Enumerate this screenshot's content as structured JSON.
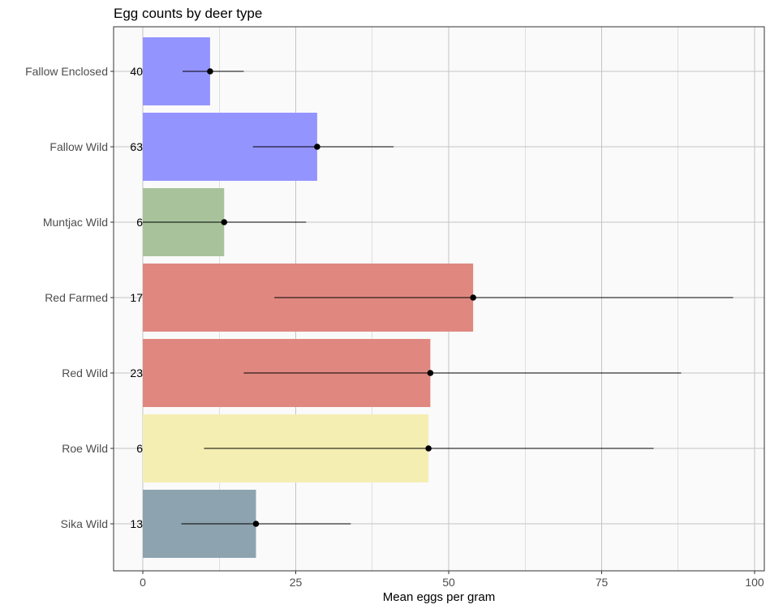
{
  "chart_data": {
    "type": "bar",
    "orientation": "horizontal",
    "title": "Egg counts by deer type",
    "xlabel": "Mean eggs per gram",
    "ylabel": "",
    "xlim": [
      0,
      100
    ],
    "xticks": [
      0,
      25,
      50,
      75,
      100
    ],
    "grid": true,
    "categories": [
      "Fallow Enclosed",
      "Fallow Wild",
      "Muntjac Wild",
      "Red Farmed",
      "Red Wild",
      "Roe Wild",
      "Sika Wild"
    ],
    "values": [
      11,
      28.5,
      13.3,
      54,
      47,
      46.7,
      18.5
    ],
    "error_low": [
      6.5,
      18,
      0,
      21.5,
      16.5,
      10,
      6.3
    ],
    "error_high": [
      16.5,
      41,
      26.7,
      96.5,
      88,
      83.5,
      34
    ],
    "counts": [
      40,
      63,
      6,
      17,
      23,
      6,
      13
    ],
    "colors": [
      "#9494ff",
      "#9494ff",
      "#a8c39b",
      "#e08880",
      "#e08880",
      "#f5eeb2",
      "#8ea3b0"
    ]
  },
  "colors": {
    "panel_background": "#fafafa",
    "grid": "#c4c4c4",
    "panel_border": "#333333",
    "point": "#000000"
  }
}
